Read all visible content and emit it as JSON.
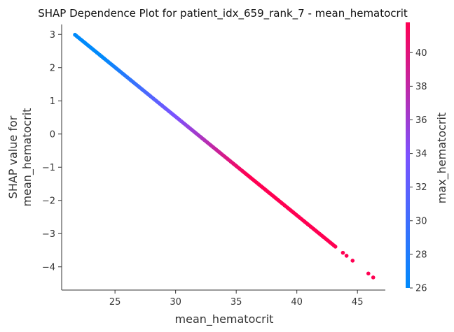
{
  "chart_data": {
    "type": "scatter",
    "title": "SHAP Dependence Plot for patient_idx_659_rank_7 - mean_hematocrit",
    "xlabel": "mean_hematocrit",
    "ylabel_lines": [
      "SHAP value for",
      "mean_hematocrit"
    ],
    "xlim": [
      20.6,
      47.3
    ],
    "ylim": [
      -4.7,
      3.3
    ],
    "xticks": [
      25,
      30,
      35,
      40,
      45
    ],
    "yticks": [
      -4,
      -3,
      -2,
      -1,
      0,
      1,
      2,
      3
    ],
    "xtick_labels": [
      "25",
      "30",
      "35",
      "40",
      "45"
    ],
    "ytick_labels": [
      "−4",
      "−3",
      "−2",
      "−1",
      "0",
      "1",
      "2",
      "3"
    ],
    "grid": false,
    "points": {
      "x_start": 21.7,
      "x_end": 46.3,
      "y_start": 2.99,
      "y_end": -4.32,
      "relation": "linear"
    },
    "color_feature": "max_hematocrit",
    "colorbar": {
      "label": "max_hematocrit",
      "range": [
        26,
        41.8
      ],
      "ticks": [
        26,
        28,
        30,
        32,
        34,
        36,
        38,
        40
      ],
      "tick_labels": [
        "26",
        "28",
        "30",
        "32",
        "34",
        "36",
        "38",
        "40"
      ],
      "color_low": "#008afb",
      "color_mid": "#7c52ff",
      "color_high": "#ff0052"
    }
  }
}
